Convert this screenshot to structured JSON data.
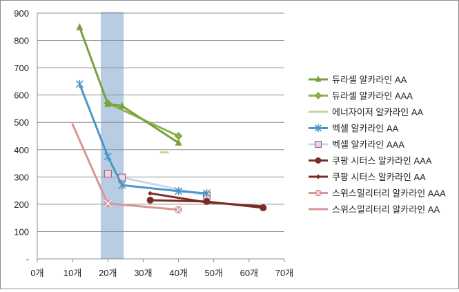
{
  "chart_data": {
    "type": "line",
    "title": "",
    "xlabel": "",
    "ylabel": "",
    "xlim": [
      0,
      70
    ],
    "ylim": [
      0,
      900
    ],
    "x_ticks": [
      0,
      10,
      20,
      30,
      40,
      50,
      60,
      70
    ],
    "x_tick_labels": [
      "0개",
      "10개",
      "20개",
      "30개",
      "40개",
      "50개",
      "60개",
      "70개"
    ],
    "y_ticks": [
      0,
      100,
      200,
      300,
      400,
      500,
      600,
      700,
      800,
      900
    ],
    "y_tick_labels": [
      "-",
      "100",
      "200",
      "300",
      "400",
      "500",
      "600",
      "700",
      "800",
      "900"
    ],
    "grid": "horizontal",
    "legend_position": "right",
    "highlight_band": {
      "x_range": [
        18,
        24.5
      ],
      "color": "#b8cce4"
    },
    "series": [
      {
        "name": "듀라셀 알카라인 AA",
        "color": "#77a23c",
        "marker": "triangle",
        "x": [
          12,
          20,
          24,
          40
        ],
        "y": [
          848,
          567,
          560,
          425
        ]
      },
      {
        "name": "듀라셀 알카라인 AAA",
        "color": "#8fb24b",
        "marker": "diamond",
        "x": [
          20,
          40
        ],
        "y": [
          570,
          450
        ]
      },
      {
        "name": "에너자이저 알카라인 AA",
        "color": "#c2d69b",
        "marker": "none",
        "x": [
          35,
          37
        ],
        "y": [
          390,
          390
        ]
      },
      {
        "name": "벡셀 알카라인 AA",
        "color": "#4a96c8",
        "marker": "star",
        "x": [
          12,
          20,
          24,
          40,
          48
        ],
        "y": [
          640,
          375,
          270,
          248,
          240
        ]
      },
      {
        "name": "벡셀 알카라인 AAA",
        "color": "#c5d9f1",
        "marker": "square",
        "x": [
          20,
          24,
          48
        ],
        "y": [
          312,
          298,
          232
        ]
      },
      {
        "name": "쿠팡 시터스 알카라인 AAA",
        "color": "#7b2c24",
        "marker": "circle",
        "x": [
          32,
          48,
          64
        ],
        "y": [
          215,
          210,
          187
        ]
      },
      {
        "name": "쿠팡 시터스 알카라인 AA",
        "color": "#7b2c24",
        "marker": "small-diamond",
        "x": [
          32,
          48,
          64
        ],
        "y": [
          240,
          207,
          192
        ]
      },
      {
        "name": "스위스밀리터리 알카라인 AAA",
        "color": "#d99694",
        "marker": "x-square",
        "x": [
          20,
          40
        ],
        "y": [
          203,
          180
        ]
      },
      {
        "name": "스위스밀리터리 알카라인 AA",
        "color": "#d99694",
        "marker": "none",
        "x": [
          10,
          20
        ],
        "y": [
          493,
          200
        ]
      }
    ]
  }
}
